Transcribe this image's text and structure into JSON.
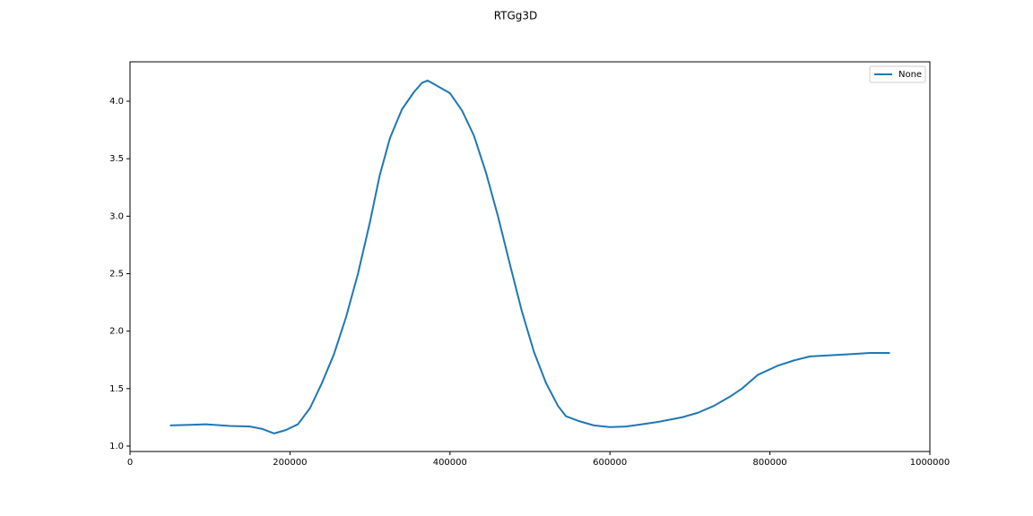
{
  "chart_data": {
    "type": "line",
    "title": "RTGg3D",
    "x": [
      50000,
      75000,
      95000,
      125000,
      150000,
      165000,
      180000,
      195000,
      210000,
      225000,
      240000,
      255000,
      270000,
      285000,
      300000,
      312000,
      325000,
      340000,
      355000,
      365000,
      372000,
      385000,
      400000,
      415000,
      430000,
      445000,
      460000,
      475000,
      490000,
      505000,
      520000,
      535000,
      545000,
      560000,
      580000,
      600000,
      620000,
      640000,
      660000,
      690000,
      710000,
      730000,
      750000,
      765000,
      785000,
      810000,
      830000,
      850000,
      875000,
      900000,
      925000,
      950000
    ],
    "series": [
      {
        "name": "None",
        "color": "#1f77b4",
        "values": [
          1.18,
          1.185,
          1.19,
          1.175,
          1.17,
          1.15,
          1.11,
          1.14,
          1.19,
          1.33,
          1.55,
          1.8,
          2.12,
          2.5,
          2.95,
          3.35,
          3.68,
          3.93,
          4.08,
          4.16,
          4.18,
          4.13,
          4.07,
          3.92,
          3.7,
          3.38,
          3.0,
          2.58,
          2.17,
          1.82,
          1.55,
          1.35,
          1.26,
          1.22,
          1.18,
          1.165,
          1.17,
          1.19,
          1.21,
          1.25,
          1.29,
          1.35,
          1.43,
          1.5,
          1.62,
          1.7,
          1.745,
          1.78,
          1.79,
          1.8,
          1.81,
          1.81
        ]
      }
    ],
    "xlim": [
      0,
      1000000
    ],
    "xticks": [
      0,
      200000,
      400000,
      600000,
      800000,
      1000000
    ],
    "ylim": [
      0.953,
      4.343
    ],
    "yticks": [
      {
        "value": 1,
        "label": "1.0"
      },
      1.5,
      {
        "value": 2,
        "label": "2.0"
      },
      2.5,
      {
        "value": 3,
        "label": "3.0"
      },
      3.5,
      {
        "value": 4,
        "label": "4.0"
      }
    ],
    "legend": "upper right"
  }
}
